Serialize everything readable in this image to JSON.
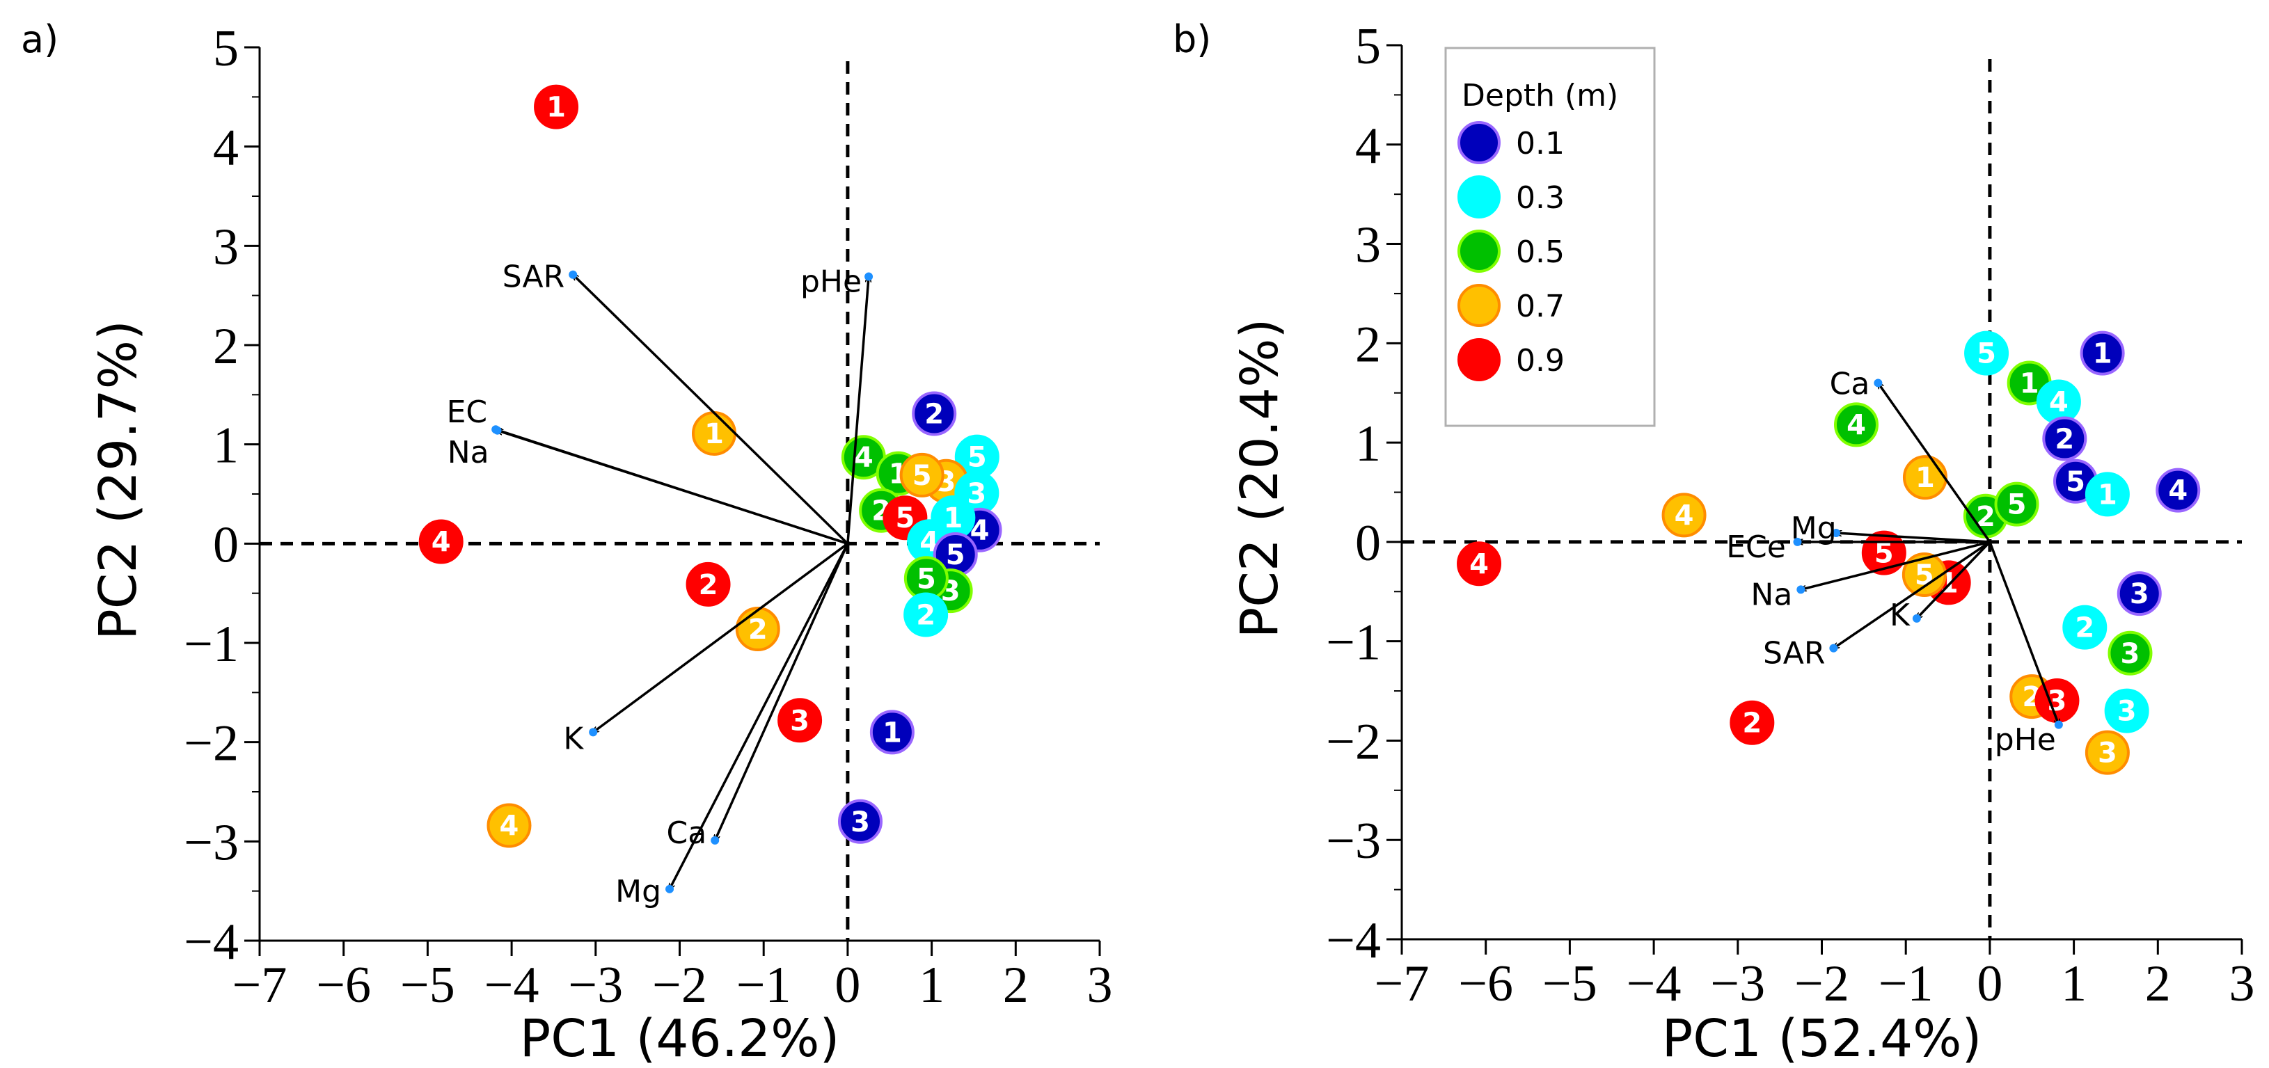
{
  "chart_data": [
    {
      "type": "scatter",
      "panel_label": "a)",
      "xlabel": "PC1 (46.2%)",
      "ylabel": "PC2 (29.7%)",
      "xlim": [
        -7,
        3
      ],
      "ylim": [
        -4,
        5
      ],
      "xticks": [
        "−7",
        "−6",
        "−5",
        "−4",
        "−3",
        "−2",
        "−1",
        "0",
        "1",
        "2",
        "3"
      ],
      "yticks": [
        "−4",
        "−3",
        "−2",
        "−1",
        "0",
        "1",
        "2",
        "3",
        "4",
        "5"
      ],
      "loadings": [
        {
          "name": "SAR",
          "x": -3.27,
          "y": 2.71
        },
        {
          "name": "pHe",
          "x": 0.25,
          "y": 2.69
        },
        {
          "name": "EC",
          "x": -4.19,
          "y": 1.15
        },
        {
          "name": "Na",
          "x": -4.17,
          "y": 1.14
        },
        {
          "name": "K",
          "x": -3.03,
          "y": -1.9
        },
        {
          "name": "Ca",
          "x": -1.58,
          "y": -2.99
        },
        {
          "name": "Mg",
          "x": -2.12,
          "y": -3.48
        }
      ],
      "points": [
        {
          "depth": "0.9",
          "label": "1",
          "x": -3.47,
          "y": 4.4
        },
        {
          "depth": "0.7",
          "label": "1",
          "x": -1.59,
          "y": 1.11
        },
        {
          "depth": "0.9",
          "label": "4",
          "x": -4.84,
          "y": 0.02
        },
        {
          "depth": "0.9",
          "label": "2",
          "x": -1.66,
          "y": -0.41
        },
        {
          "depth": "0.7",
          "label": "2",
          "x": -1.07,
          "y": -0.86
        },
        {
          "depth": "0.9",
          "label": "3",
          "x": -0.57,
          "y": -1.78
        },
        {
          "depth": "0.7",
          "label": "4",
          "x": -4.03,
          "y": -2.84
        },
        {
          "depth": "0.1",
          "label": "1",
          "x": 0.53,
          "y": -1.9
        },
        {
          "depth": "0.1",
          "label": "3",
          "x": 0.15,
          "y": -2.8
        },
        {
          "depth": "0.1",
          "label": "2",
          "x": 1.03,
          "y": 1.31
        },
        {
          "depth": "0.5",
          "label": "4",
          "x": 0.19,
          "y": 0.87
        },
        {
          "depth": "0.3",
          "label": "5",
          "x": 1.54,
          "y": 0.81
        },
        {
          "depth": "0.5",
          "label": "1",
          "x": 0.8,
          "y": 0.65
        },
        {
          "depth": "0.7",
          "label": "3",
          "x": 0.93,
          "y": 0.58
        },
        {
          "depth": "0.7",
          "label": "5",
          "x": 0.93,
          "y": 0.69
        },
        {
          "depth": "0.5",
          "label": "2",
          "x": 0.54,
          "y": 0.39
        },
        {
          "depth": "0.9",
          "label": "5",
          "x": 0.67,
          "y": 0.26
        },
        {
          "depth": "0.3",
          "label": "3",
          "x": 1.48,
          "y": 0.43
        },
        {
          "depth": "0.1",
          "label": "4",
          "x": 1.5,
          "y": 0.28
        },
        {
          "depth": "0.3",
          "label": "1",
          "x": 1.24,
          "y": 0.17
        },
        {
          "depth": "0.3",
          "label": "4",
          "x": 0.93,
          "y": 0.01
        },
        {
          "depth": "0.1",
          "label": "5",
          "x": 1.34,
          "y": -0.09
        },
        {
          "depth": "0.5",
          "label": "3",
          "x": 1.2,
          "y": -0.35
        },
        {
          "depth": "0.5",
          "label": "5",
          "x": 0.96,
          "y": -0.42
        },
        {
          "depth": "0.3",
          "label": "2",
          "x": 0.93,
          "y": -0.64
        }
      ]
    },
    {
      "type": "scatter",
      "panel_label": "b)",
      "xlabel": "PC1 (52.4%)",
      "ylabel": "PC2 (20.4%)",
      "xlim": [
        -7,
        3
      ],
      "ylim": [
        -4,
        5
      ],
      "xticks": [
        "−7",
        "−6",
        "−5",
        "−4",
        "−3",
        "−2",
        "−1",
        "0",
        "1",
        "2",
        "3"
      ],
      "yticks": [
        "−4",
        "−3",
        "−2",
        "−1",
        "0",
        "1",
        "2",
        "3",
        "4",
        "5"
      ],
      "legend": {
        "title": "Depth (m)",
        "placement": "top-left",
        "entries": [
          "0.1",
          "0.3",
          "0.5",
          "0.7",
          "0.9"
        ]
      },
      "loadings": [
        {
          "name": "Ca",
          "x": -1.33,
          "y": 1.6
        },
        {
          "name": "Mg",
          "x": -1.83,
          "y": 0.09
        },
        {
          "name": "ECe",
          "x": -2.29,
          "y": 0.0
        },
        {
          "name": "Na",
          "x": -2.25,
          "y": -0.48
        },
        {
          "name": "SAR",
          "x": -1.86,
          "y": -1.07
        },
        {
          "name": "K",
          "x": -0.87,
          "y": -0.77
        },
        {
          "name": "pHe",
          "x": 0.82,
          "y": -1.84
        }
      ],
      "points": [
        {
          "depth": "0.1",
          "label": "1",
          "x": 1.34,
          "y": 1.9
        },
        {
          "depth": "0.3",
          "label": "5",
          "x": -0.04,
          "y": 1.9
        },
        {
          "depth": "0.5",
          "label": "1",
          "x": 0.47,
          "y": 1.6
        },
        {
          "depth": "0.3",
          "label": "4",
          "x": 0.82,
          "y": 1.4
        },
        {
          "depth": "0.1",
          "label": "2",
          "x": 0.89,
          "y": 1.05
        },
        {
          "depth": "0.5",
          "label": "4",
          "x": -1.59,
          "y": 1.18
        },
        {
          "depth": "0.7",
          "label": "1",
          "x": -0.77,
          "y": 0.65
        },
        {
          "depth": "0.1",
          "label": "5",
          "x": 1.02,
          "y": 0.61
        },
        {
          "depth": "0.3",
          "label": "1",
          "x": 1.4,
          "y": 0.48
        },
        {
          "depth": "0.1",
          "label": "4",
          "x": 2.24,
          "y": 0.52
        },
        {
          "depth": "0.5",
          "label": "2",
          "x": -0.05,
          "y": 0.26
        },
        {
          "depth": "0.5",
          "label": "5",
          "x": 0.32,
          "y": 0.38
        },
        {
          "depth": "0.7",
          "label": "4",
          "x": -3.64,
          "y": 0.27
        },
        {
          "depth": "0.9",
          "label": "4",
          "x": -6.08,
          "y": -0.22
        },
        {
          "depth": "0.9",
          "label": "5",
          "x": -1.26,
          "y": -0.11
        },
        {
          "depth": "0.9",
          "label": "1",
          "x": -0.5,
          "y": -0.41
        },
        {
          "depth": "0.7",
          "label": "5",
          "x": -0.77,
          "y": -0.33
        },
        {
          "depth": "0.1",
          "label": "3",
          "x": 1.78,
          "y": -0.52
        },
        {
          "depth": "0.3",
          "label": "2",
          "x": 1.13,
          "y": -0.86
        },
        {
          "depth": "0.5",
          "label": "3",
          "x": 1.67,
          "y": -1.12
        },
        {
          "depth": "0.7",
          "label": "2",
          "x": 0.5,
          "y": -1.56
        },
        {
          "depth": "0.9",
          "label": "3",
          "x": 0.8,
          "y": -1.64
        },
        {
          "depth": "0.3",
          "label": "3",
          "x": 1.63,
          "y": -1.7
        },
        {
          "depth": "0.7",
          "label": "3",
          "x": 1.4,
          "y": -2.12
        },
        {
          "depth": "0.9",
          "label": "2",
          "x": -2.83,
          "y": -1.82
        }
      ]
    }
  ],
  "colors": {
    "0.1": {
      "fill": "#0000BB",
      "stroke": "#9966FF"
    },
    "0.3": {
      "fill": "#00FFFF",
      "stroke": "#00FFFF"
    },
    "0.5": {
      "fill": "#00C000",
      "stroke": "#80FF00"
    },
    "0.7": {
      "fill": "#FFC000",
      "stroke": "#FF8C00"
    },
    "0.9": {
      "fill": "#FF0000",
      "stroke": "#FF0000"
    },
    "loading_tip": "#1E90FF"
  }
}
